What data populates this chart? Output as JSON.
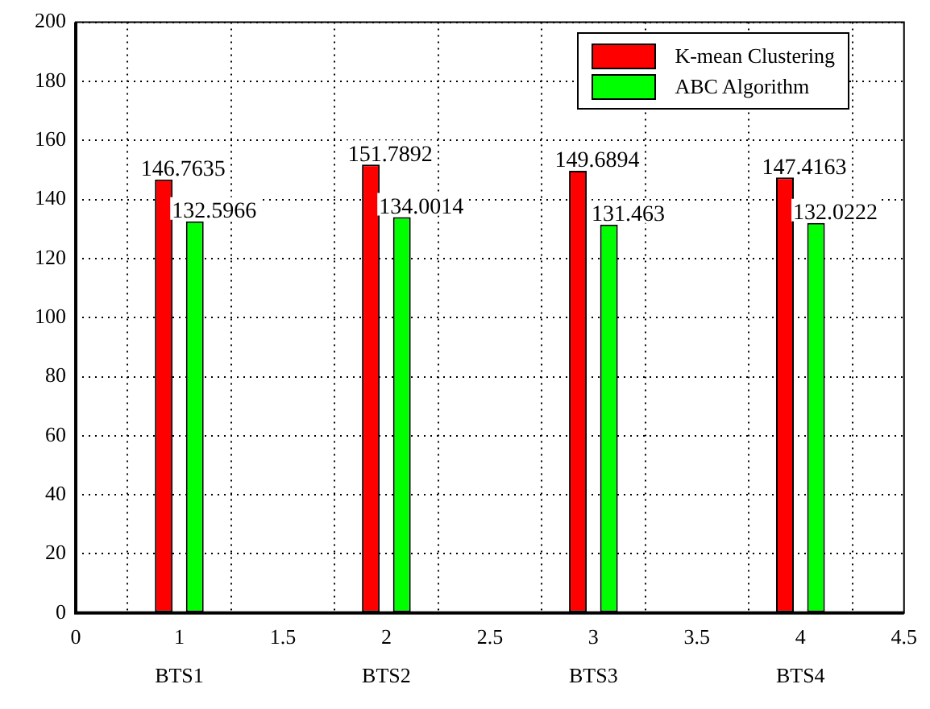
{
  "chart_data": {
    "type": "bar",
    "x": [
      1,
      2,
      3,
      4
    ],
    "series": [
      {
        "name": "K-mean Clustering",
        "color": "#ff0000",
        "values": [
          146.7635,
          151.7892,
          149.6894,
          147.4163
        ]
      },
      {
        "name": "ABC Algorithm",
        "color": "#00ff00",
        "values": [
          132.5966,
          134.0014,
          131.463,
          132.0222
        ]
      }
    ],
    "xlim": [
      0.5,
      4.5
    ],
    "xticks": [
      {
        "value": 0.5,
        "label": "0"
      },
      1,
      1.5,
      2,
      2.5,
      3,
      3.5,
      4,
      4.5
    ],
    "ylim": [
      0,
      200
    ],
    "yticks": [
      0,
      20,
      40,
      60,
      80,
      100,
      120,
      140,
      160,
      180,
      200
    ],
    "annotations": [
      "BTS1",
      "BTS2",
      "BTS3",
      "BTS4"
    ],
    "data_labels": true,
    "grid": true,
    "legend": "top right"
  }
}
